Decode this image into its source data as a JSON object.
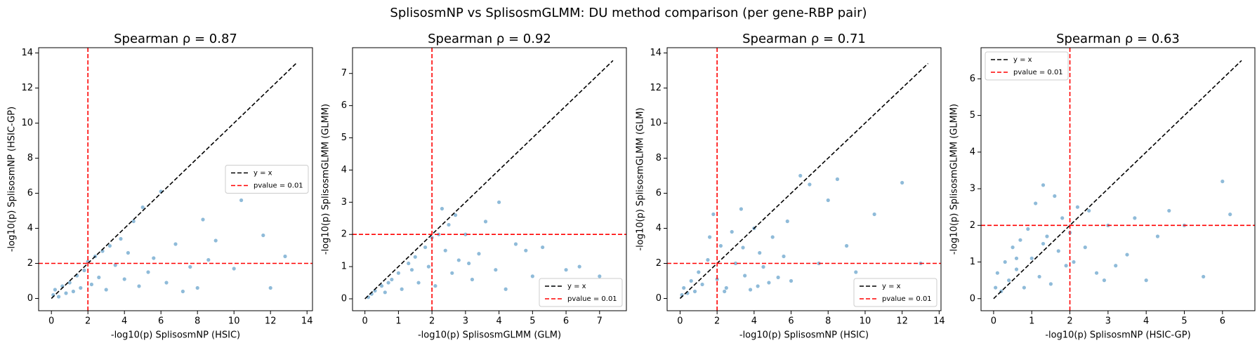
{
  "title": "SplisosmNP vs SplisosmGLMM: DU method comparison (per gene-RBP pair)",
  "chart_data": [
    {
      "type": "scatter",
      "title": "Spearman ρ = 0.87",
      "xlabel": "-log10(p)  SplisosmNP (HSIC)",
      "ylabel": "-log10(p)  SplisosmNP (HSIC-GP)",
      "color": "#1f77b4",
      "legend": "center right",
      "xlim": [
        -0.7,
        14.3
      ],
      "ylim": [
        -0.7,
        14.3
      ],
      "xticks": [
        0,
        2,
        4,
        6,
        8,
        10,
        12,
        14
      ],
      "yticks": [
        0,
        2,
        4,
        6,
        8,
        10,
        12,
        14
      ],
      "reference_lines": [
        {
          "name": "y = x",
          "color": "#000000",
          "from": 0,
          "to": 13.4
        },
        {
          "name": "pvalue = 0.01",
          "color": "#ff0000",
          "at": 2
        }
      ],
      "x": [
        0.1,
        0.2,
        0.4,
        0.6,
        0.8,
        1.0,
        1.2,
        1.4,
        1.6,
        1.8,
        2.0,
        2.2,
        2.4,
        2.6,
        2.8,
        3.0,
        3.2,
        3.5,
        3.8,
        4.0,
        4.2,
        4.5,
        4.8,
        5.0,
        5.3,
        5.6,
        6.0,
        6.3,
        6.8,
        7.2,
        7.6,
        8.0,
        8.3,
        8.6,
        9.0,
        10.0,
        10.4,
        11.6,
        12.0,
        12.8
      ],
      "values": [
        0.2,
        0.5,
        0.1,
        0.7,
        0.3,
        0.9,
        0.4,
        1.3,
        0.6,
        1.6,
        2.1,
        0.8,
        2.4,
        1.2,
        2.7,
        0.5,
        3.0,
        1.9,
        3.4,
        1.1,
        2.6,
        4.4,
        0.7,
        5.2,
        1.5,
        2.3,
        6.1,
        0.9,
        3.1,
        0.4,
        1.8,
        0.6,
        4.5,
        2.2,
        3.3,
        1.7,
        5.6,
        3.6,
        0.6,
        2.4
      ]
    },
    {
      "type": "scatter",
      "title": "Spearman ρ = 0.92",
      "xlabel": "-log10(p)  SplisosmGLMM (GLM)",
      "ylabel": "-log10(p)  SplisosmGLMM (GLMM)",
      "color": "#1f77b4",
      "legend": "lower right",
      "xlim": [
        -0.37,
        7.8
      ],
      "ylim": [
        -0.37,
        7.8
      ],
      "xticks": [
        0,
        1,
        2,
        3,
        4,
        5,
        6,
        7
      ],
      "yticks": [
        0,
        1,
        2,
        3,
        4,
        5,
        6,
        7
      ],
      "reference_lines": [
        {
          "name": "y = x",
          "color": "#000000",
          "from": 0,
          "to": 7.4
        },
        {
          "name": "pvalue = 0.01",
          "color": "#ff0000",
          "at": 2
        }
      ],
      "x": [
        0.1,
        0.2,
        0.3,
        0.5,
        0.6,
        0.8,
        1.0,
        1.1,
        1.3,
        1.5,
        1.6,
        1.8,
        1.9,
        2.0,
        2.1,
        2.2,
        2.4,
        2.5,
        2.6,
        2.7,
        2.8,
        3.0,
        3.2,
        3.4,
        3.6,
        3.9,
        4.0,
        4.2,
        4.5,
        4.8,
        5.0,
        5.3,
        5.6,
        6.0,
        6.4,
        7.0,
        2.3,
        1.4,
        0.7,
        3.1
      ],
      "values": [
        0.05,
        0.15,
        0.25,
        0.4,
        0.2,
        0.6,
        0.8,
        0.3,
        1.1,
        1.3,
        0.5,
        1.6,
        1.0,
        1.9,
        0.4,
        2.0,
        1.5,
        2.3,
        0.8,
        2.6,
        1.2,
        2.0,
        0.6,
        1.4,
        2.4,
        0.9,
        3.0,
        0.3,
        1.7,
        1.5,
        0.7,
        1.6,
        0.4,
        0.9,
        1.0,
        0.7,
        2.8,
        0.9,
        0.5,
        1.1
      ]
    },
    {
      "type": "scatter",
      "title": "Spearman ρ = 0.71",
      "xlabel": "-log10(p)  SplisosmNP (HSIC)",
      "ylabel": "-log10(p)  SplisosmGLMM (GLM)",
      "color": "#1f77b4",
      "legend": "lower right",
      "xlim": [
        -0.7,
        14.1
      ],
      "ylim": [
        -0.7,
        14.3
      ],
      "xticks": [
        0,
        2,
        4,
        6,
        8,
        10,
        12,
        14
      ],
      "yticks": [
        0,
        2,
        4,
        6,
        8,
        10,
        12,
        14
      ],
      "reference_lines": [
        {
          "name": "y = x",
          "color": "#000000",
          "from": 0,
          "to": 13.4
        },
        {
          "name": "pvalue = 0.01",
          "color": "#ff0000",
          "at": 2
        }
      ],
      "x": [
        0.1,
        0.2,
        0.4,
        0.6,
        0.8,
        1.0,
        1.2,
        1.5,
        1.8,
        2.0,
        2.2,
        2.5,
        2.8,
        3.0,
        3.3,
        3.5,
        3.8,
        4.0,
        4.3,
        4.5,
        4.8,
        5.0,
        5.3,
        5.6,
        6.0,
        6.5,
        7.0,
        7.5,
        8.0,
        8.5,
        9.0,
        9.5,
        10.5,
        12.0,
        13.0,
        1.6,
        2.4,
        3.4,
        4.2,
        5.8
      ],
      "values": [
        0.2,
        0.6,
        0.3,
        1.0,
        0.4,
        1.5,
        0.8,
        2.2,
        4.8,
        1.1,
        3.0,
        0.6,
        3.8,
        2.0,
        5.1,
        1.3,
        0.5,
        4.0,
        2.6,
        1.8,
        0.9,
        3.5,
        1.2,
        2.4,
        1.0,
        7.0,
        6.5,
        2.0,
        5.6,
        6.8,
        3.0,
        1.5,
        4.8,
        6.6,
        2.0,
        3.5,
        0.4,
        2.9,
        0.7,
        4.4
      ]
    },
    {
      "type": "scatter",
      "title": "Spearman ρ = 0.63",
      "xlabel": "-log10(p)  SplisosmNP (HSIC-GP)",
      "ylabel": "-log10(p)  SplisosmGLMM (GLMM)",
      "color": "#1f77b4",
      "legend": "upper left",
      "xlim": [
        -0.33,
        6.85
      ],
      "ylim": [
        -0.33,
        6.85
      ],
      "xticks": [
        0,
        1,
        2,
        3,
        4,
        5,
        6
      ],
      "yticks": [
        0,
        1,
        2,
        3,
        4,
        5,
        6
      ],
      "reference_lines": [
        {
          "name": "y = x",
          "color": "#000000",
          "from": 0,
          "to": 6.5
        },
        {
          "name": "pvalue = 0.01",
          "color": "#ff0000",
          "at": 2
        }
      ],
      "x": [
        0.05,
        0.1,
        0.2,
        0.3,
        0.4,
        0.5,
        0.6,
        0.7,
        0.8,
        0.9,
        1.0,
        1.1,
        1.2,
        1.3,
        1.4,
        1.5,
        1.6,
        1.7,
        1.8,
        1.9,
        2.0,
        2.1,
        2.2,
        2.4,
        2.5,
        2.7,
        3.0,
        3.2,
        3.5,
        3.7,
        4.0,
        4.3,
        4.6,
        5.0,
        5.5,
        6.0,
        6.2,
        0.6,
        1.3,
        2.9
      ],
      "values": [
        0.3,
        0.7,
        0.2,
        1.0,
        0.5,
        1.4,
        0.8,
        1.6,
        0.3,
        1.9,
        1.1,
        2.6,
        0.6,
        3.1,
        1.7,
        0.4,
        2.8,
        1.3,
        2.2,
        0.9,
        1.8,
        1.0,
        2.5,
        1.4,
        2.4,
        0.7,
        2.0,
        0.9,
        1.2,
        2.2,
        0.5,
        1.7,
        2.4,
        2.0,
        0.6,
        3.2,
        2.3,
        1.1,
        1.5,
        0.5
      ]
    }
  ]
}
